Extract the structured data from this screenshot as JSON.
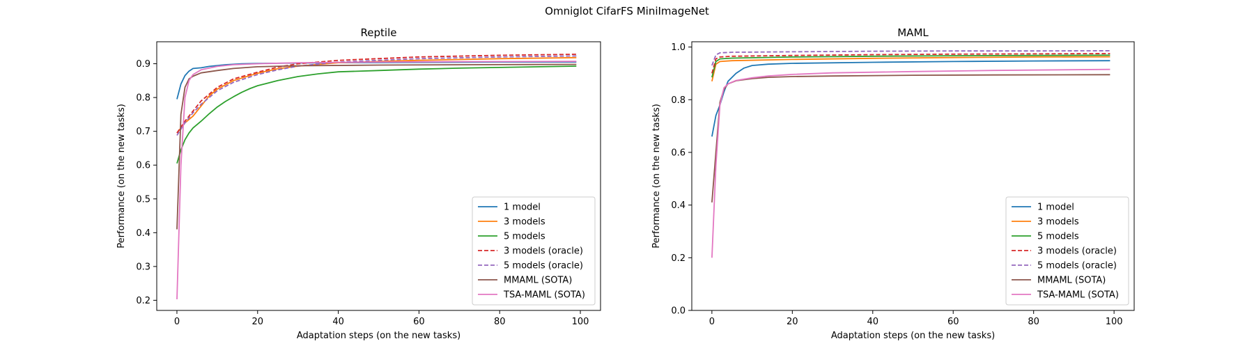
{
  "figure": {
    "title": "Omniglot CifarFS MiniImageNet"
  },
  "chart_data": [
    {
      "type": "line",
      "title": "Reptile",
      "xlabel": "Adaptation steps (on the new tasks)",
      "ylabel": "Performance (on the new tasks)",
      "xlim": [
        -5,
        105
      ],
      "ylim": [
        0.17,
        0.965
      ],
      "xticks": [
        "0",
        "20",
        "40",
        "60",
        "80",
        "100"
      ],
      "yticks": [
        "0.2",
        "0.3",
        "0.4",
        "0.5",
        "0.6",
        "0.7",
        "0.8",
        "0.9"
      ],
      "grid": false,
      "legend_position": "lower-right",
      "series": [
        {
          "name": "1 model",
          "color": "#1f77b4",
          "dash": "solid",
          "points": [
            [
              0,
              0.795
            ],
            [
              1,
              0.84
            ],
            [
              2,
              0.865
            ],
            [
              3,
              0.878
            ],
            [
              4,
              0.886
            ],
            [
              6,
              0.888
            ],
            [
              8,
              0.892
            ],
            [
              12,
              0.897
            ],
            [
              16,
              0.9
            ],
            [
              20,
              0.901
            ],
            [
              40,
              0.903
            ],
            [
              60,
              0.904
            ],
            [
              80,
              0.905
            ],
            [
              99,
              0.905
            ]
          ]
        },
        {
          "name": "3 models",
          "color": "#ff7f0e",
          "dash": "solid",
          "points": [
            [
              0,
              0.695
            ],
            [
              2,
              0.725
            ],
            [
              4,
              0.745
            ],
            [
              6,
              0.775
            ],
            [
              8,
              0.805
            ],
            [
              10,
              0.825
            ],
            [
              14,
              0.85
            ],
            [
              20,
              0.872
            ],
            [
              25,
              0.885
            ],
            [
              30,
              0.893
            ],
            [
              40,
              0.903
            ],
            [
              60,
              0.91
            ],
            [
              80,
              0.915
            ],
            [
              99,
              0.918
            ]
          ]
        },
        {
          "name": "5 models",
          "color": "#2ca02c",
          "dash": "solid",
          "points": [
            [
              0,
              0.605
            ],
            [
              1,
              0.645
            ],
            [
              2,
              0.675
            ],
            [
              3,
              0.695
            ],
            [
              4,
              0.71
            ],
            [
              6,
              0.73
            ],
            [
              8,
              0.752
            ],
            [
              10,
              0.772
            ],
            [
              12,
              0.788
            ],
            [
              14,
              0.802
            ],
            [
              16,
              0.815
            ],
            [
              18,
              0.826
            ],
            [
              20,
              0.835
            ],
            [
              25,
              0.85
            ],
            [
              30,
              0.862
            ],
            [
              35,
              0.87
            ],
            [
              40,
              0.876
            ],
            [
              50,
              0.88
            ],
            [
              60,
              0.884
            ],
            [
              70,
              0.887
            ],
            [
              80,
              0.889
            ],
            [
              90,
              0.891
            ],
            [
              99,
              0.893
            ]
          ]
        },
        {
          "name": "3 models (oracle)",
          "color": "#d62728",
          "dash": "dashed",
          "points": [
            [
              0,
              0.695
            ],
            [
              2,
              0.73
            ],
            [
              4,
              0.76
            ],
            [
              6,
              0.79
            ],
            [
              8,
              0.81
            ],
            [
              10,
              0.83
            ],
            [
              14,
              0.855
            ],
            [
              20,
              0.875
            ],
            [
              25,
              0.89
            ],
            [
              30,
              0.9
            ],
            [
              40,
              0.91
            ],
            [
              60,
              0.92
            ],
            [
              80,
              0.925
            ],
            [
              99,
              0.928
            ]
          ]
        },
        {
          "name": "5 models (oracle)",
          "color": "#9467bd",
          "dash": "dashed",
          "points": [
            [
              0,
              0.688
            ],
            [
              2,
              0.725
            ],
            [
              4,
              0.755
            ],
            [
              6,
              0.78
            ],
            [
              8,
              0.8
            ],
            [
              10,
              0.82
            ],
            [
              14,
              0.845
            ],
            [
              20,
              0.868
            ],
            [
              25,
              0.882
            ],
            [
              30,
              0.893
            ],
            [
              40,
              0.905
            ],
            [
              60,
              0.915
            ],
            [
              80,
              0.92
            ],
            [
              99,
              0.923
            ]
          ]
        },
        {
          "name": "MMAML (SOTA)",
          "color": "#8c564b",
          "dash": "solid",
          "points": [
            [
              0,
              0.41
            ],
            [
              1,
              0.75
            ],
            [
              2,
              0.83
            ],
            [
              3,
              0.855
            ],
            [
              4,
              0.863
            ],
            [
              6,
              0.873
            ],
            [
              10,
              0.88
            ],
            [
              14,
              0.886
            ],
            [
              20,
              0.891
            ],
            [
              30,
              0.894
            ],
            [
              50,
              0.896
            ],
            [
              70,
              0.897
            ],
            [
              99,
              0.898
            ]
          ]
        },
        {
          "name": "TSA-MAML (SOTA)",
          "color": "#e377c2",
          "dash": "solid",
          "points": [
            [
              0,
              0.203
            ],
            [
              1,
              0.6
            ],
            [
              2,
              0.8
            ],
            [
              3,
              0.85
            ],
            [
              4,
              0.868
            ],
            [
              6,
              0.882
            ],
            [
              10,
              0.892
            ],
            [
              14,
              0.897
            ],
            [
              20,
              0.9
            ],
            [
              30,
              0.903
            ],
            [
              50,
              0.905
            ],
            [
              70,
              0.906
            ],
            [
              99,
              0.907
            ]
          ]
        }
      ]
    },
    {
      "type": "line",
      "title": "MAML",
      "xlabel": "Adaptation steps (on the new tasks)",
      "ylabel": "Performance (on the new tasks)",
      "xlim": [
        -5,
        105
      ],
      "ylim": [
        0,
        1.02
      ],
      "xticks": [
        "0",
        "20",
        "40",
        "60",
        "80",
        "100"
      ],
      "yticks": [
        "0.0",
        "0.2",
        "0.4",
        "0.6",
        "0.8",
        "1.0"
      ],
      "grid": false,
      "legend_position": "lower-right",
      "series": [
        {
          "name": "1 model",
          "color": "#1f77b4",
          "dash": "solid",
          "points": [
            [
              0,
              0.66
            ],
            [
              1,
              0.74
            ],
            [
              2,
              0.78
            ],
            [
              3,
              0.83
            ],
            [
              4,
              0.87
            ],
            [
              6,
              0.9
            ],
            [
              8,
              0.92
            ],
            [
              10,
              0.93
            ],
            [
              14,
              0.935
            ],
            [
              20,
              0.938
            ],
            [
              40,
              0.942
            ],
            [
              60,
              0.945
            ],
            [
              80,
              0.947
            ],
            [
              99,
              0.948
            ]
          ]
        },
        {
          "name": "3 models",
          "color": "#ff7f0e",
          "dash": "solid",
          "points": [
            [
              0,
              0.87
            ],
            [
              1,
              0.935
            ],
            [
              2,
              0.945
            ],
            [
              5,
              0.948
            ],
            [
              20,
              0.953
            ],
            [
              40,
              0.957
            ],
            [
              60,
              0.96
            ],
            [
              80,
              0.962
            ],
            [
              99,
              0.963
            ]
          ]
        },
        {
          "name": "5 models",
          "color": "#2ca02c",
          "dash": "solid",
          "points": [
            [
              0,
              0.885
            ],
            [
              1,
              0.945
            ],
            [
              2,
              0.955
            ],
            [
              5,
              0.958
            ],
            [
              20,
              0.962
            ],
            [
              40,
              0.965
            ],
            [
              60,
              0.967
            ],
            [
              80,
              0.968
            ],
            [
              99,
              0.969
            ]
          ]
        },
        {
          "name": "3 models (oracle)",
          "color": "#d62728",
          "dash": "dashed",
          "points": [
            [
              0,
              0.9
            ],
            [
              1,
              0.955
            ],
            [
              2,
              0.962
            ],
            [
              5,
              0.965
            ],
            [
              20,
              0.968
            ],
            [
              40,
              0.971
            ],
            [
              60,
              0.973
            ],
            [
              80,
              0.974
            ],
            [
              99,
              0.975
            ]
          ]
        },
        {
          "name": "5 models (oracle)",
          "color": "#9467bd",
          "dash": "dashed",
          "points": [
            [
              0,
              0.93
            ],
            [
              1,
              0.97
            ],
            [
              2,
              0.978
            ],
            [
              5,
              0.98
            ],
            [
              20,
              0.982
            ],
            [
              40,
              0.984
            ],
            [
              60,
              0.985
            ],
            [
              80,
              0.985
            ],
            [
              99,
              0.986
            ]
          ]
        },
        {
          "name": "MMAML (SOTA)",
          "color": "#8c564b",
          "dash": "solid",
          "points": [
            [
              0,
              0.41
            ],
            [
              1,
              0.6
            ],
            [
              2,
              0.79
            ],
            [
              3,
              0.84
            ],
            [
              4,
              0.86
            ],
            [
              6,
              0.872
            ],
            [
              10,
              0.88
            ],
            [
              14,
              0.885
            ],
            [
              20,
              0.888
            ],
            [
              30,
              0.89
            ],
            [
              50,
              0.893
            ],
            [
              70,
              0.894
            ],
            [
              99,
              0.895
            ]
          ]
        },
        {
          "name": "TSA-MAML (SOTA)",
          "color": "#e377c2",
          "dash": "solid",
          "points": [
            [
              0,
              0.2
            ],
            [
              1,
              0.55
            ],
            [
              2,
              0.78
            ],
            [
              3,
              0.845
            ],
            [
              4,
              0.86
            ],
            [
              6,
              0.873
            ],
            [
              10,
              0.883
            ],
            [
              14,
              0.89
            ],
            [
              20,
              0.896
            ],
            [
              30,
              0.902
            ],
            [
              50,
              0.907
            ],
            [
              70,
              0.911
            ],
            [
              99,
              0.915
            ]
          ]
        }
      ]
    }
  ]
}
